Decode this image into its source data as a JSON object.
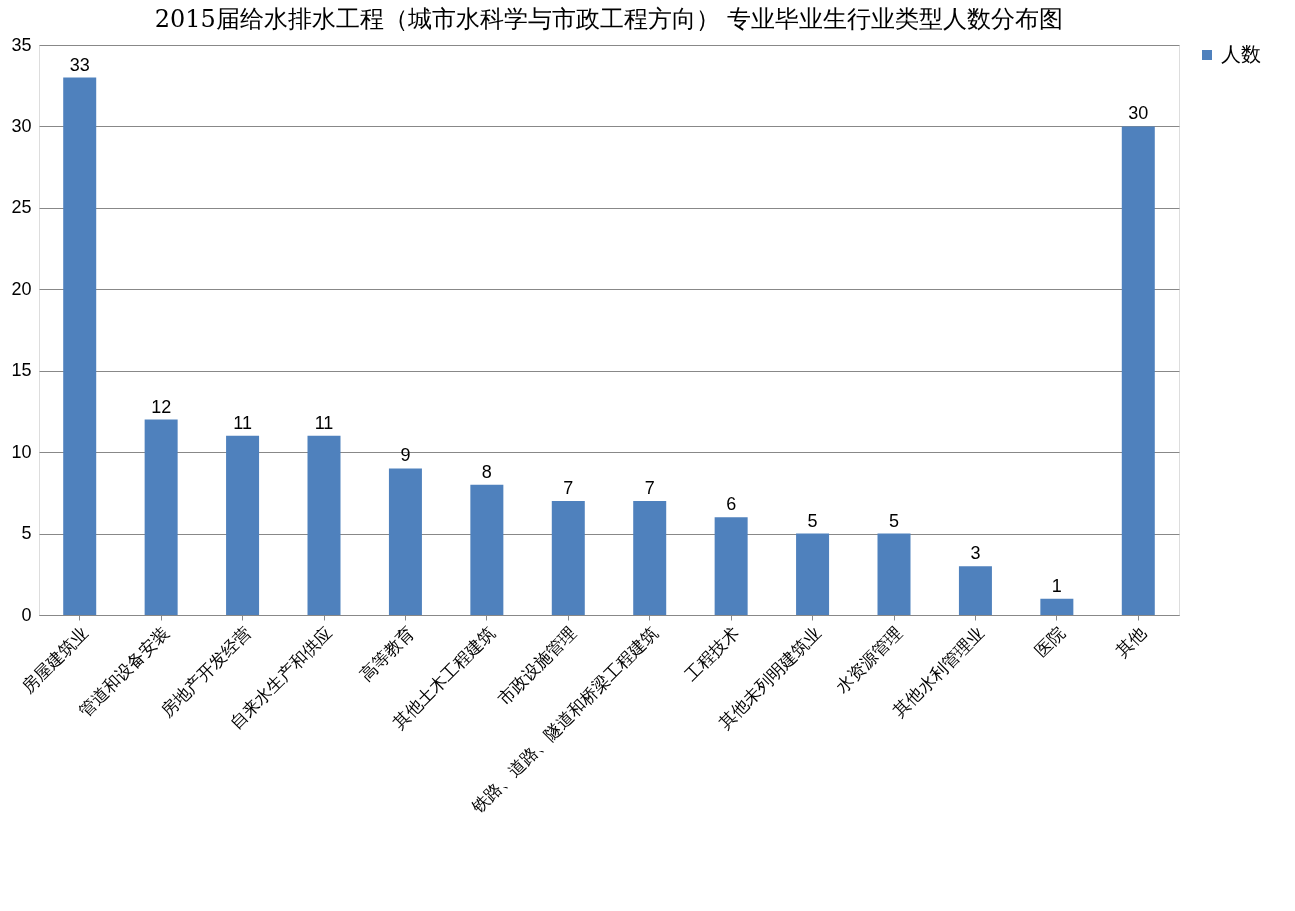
{
  "chart_data": {
    "type": "bar",
    "title": "2015届给水排水工程（城市水科学与市政工程方向） 专业毕业生行业类型人数分布图",
    "categories": [
      "房屋建筑业",
      "管道和设备安装",
      "房地产开发经营",
      "自来水生产和供应",
      "高等教育",
      "其他土木工程建筑",
      "市政设施管理",
      "铁路、道路、隧道和桥梁工程建筑",
      "工程技术",
      "其他未列明建筑业",
      "水资源管理",
      "其他水利管理业",
      "医院",
      "其他"
    ],
    "series": [
      {
        "name": "人数",
        "color": "#4f81bd",
        "values": [
          33,
          12,
          11,
          11,
          9,
          8,
          7,
          7,
          6,
          5,
          5,
          3,
          1,
          30
        ]
      }
    ],
    "ylim": [
      0,
      35
    ],
    "yticks": [
      0,
      5,
      10,
      15,
      20,
      25,
      30,
      35
    ],
    "grid": "y",
    "legend": "right",
    "data_labels": true
  }
}
